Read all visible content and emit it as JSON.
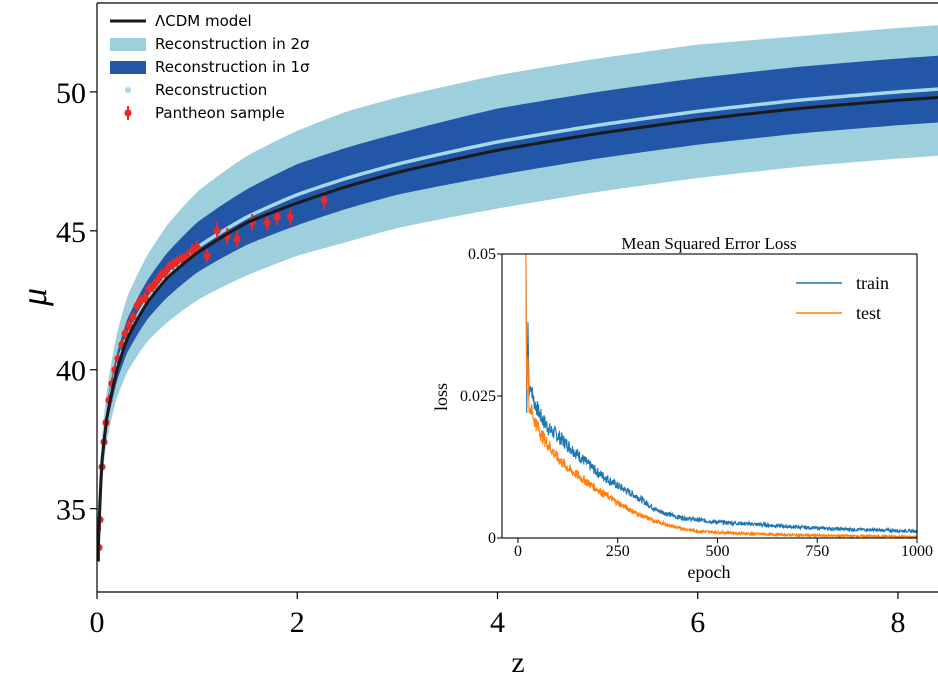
{
  "chart_data": [
    {
      "type": "line",
      "xlabel": "z",
      "ylabel": "μ",
      "xlim": [
        0,
        8.4
      ],
      "ylim": [
        32,
        53.2
      ],
      "x_ticks": [
        "0",
        "2",
        "4",
        "6",
        "8"
      ],
      "y_ticks": [
        "35",
        "40",
        "45",
        "50"
      ],
      "x_tick_values": [
        0,
        2,
        4,
        6,
        8
      ],
      "y_tick_values": [
        35,
        40,
        45,
        50
      ],
      "grid": false,
      "legend_position": "top-left",
      "colors": {
        "lcdm": "#1a1a1a",
        "band_2sigma": "#9ecfdc",
        "band_1sigma": "#2257a7",
        "reconstruction": "#a7d8e8",
        "pantheon": "#e82a2a"
      },
      "legend": [
        {
          "key": "lcdm",
          "label": "ΛCDM model"
        },
        {
          "key": "band_2sigma",
          "label": "Reconstruction in 2σ"
        },
        {
          "key": "band_1sigma",
          "label": "Reconstruction in 1σ"
        },
        {
          "key": "reconstruction",
          "label": "Reconstruction"
        },
        {
          "key": "pantheon",
          "label": "Pantheon sample"
        }
      ],
      "series": [
        {
          "name": "ΛCDM model",
          "x": [
            0.01,
            0.05,
            0.1,
            0.2,
            0.3,
            0.5,
            0.7,
            1.0,
            1.5,
            2.0,
            2.5,
            3.0,
            4.0,
            5.0,
            6.0,
            7.0,
            8.0,
            8.4
          ],
          "y": [
            33.1,
            36.7,
            38.3,
            40.0,
            41.1,
            42.4,
            43.3,
            44.2,
            45.3,
            46.0,
            46.6,
            47.1,
            47.9,
            48.5,
            49.0,
            49.4,
            49.7,
            49.8
          ]
        },
        {
          "name": "Reconstruction",
          "x": [
            0.01,
            0.05,
            0.1,
            0.2,
            0.3,
            0.5,
            0.7,
            1.0,
            1.5,
            2.0,
            2.5,
            3.0,
            4.0,
            5.0,
            6.0,
            7.0,
            8.0,
            8.4
          ],
          "y": [
            33.3,
            36.8,
            38.4,
            40.1,
            41.2,
            42.5,
            43.4,
            44.4,
            45.5,
            46.3,
            46.9,
            47.4,
            48.2,
            48.8,
            49.3,
            49.7,
            50.0,
            50.1
          ],
          "band_1sigma": {
            "lower": [
              33.0,
              36.4,
              38.0,
              39.6,
              40.6,
              41.8,
              42.6,
              43.5,
              44.5,
              45.2,
              45.8,
              46.3,
              47.0,
              47.6,
              48.1,
              48.5,
              48.8,
              48.9
            ],
            "upper": [
              33.6,
              37.2,
              38.8,
              40.6,
              41.8,
              43.2,
              44.2,
              45.3,
              46.5,
              47.4,
              48.0,
              48.5,
              49.4,
              50.0,
              50.5,
              50.9,
              51.2,
              51.3
            ]
          },
          "band_2sigma": {
            "lower": [
              32.8,
              36.0,
              37.5,
              39.0,
              39.9,
              41.0,
              41.7,
              42.5,
              43.4,
              44.1,
              44.6,
              45.1,
              45.8,
              46.4,
              46.9,
              47.3,
              47.6,
              47.7
            ],
            "upper": [
              33.9,
              37.6,
              39.3,
              41.3,
              42.6,
              44.1,
              45.2,
              46.4,
              47.7,
              48.6,
              49.3,
              49.8,
              50.6,
              51.2,
              51.7,
              52.0,
              52.3,
              52.4
            ]
          }
        },
        {
          "name": "Pantheon sample",
          "type": "scatter",
          "x": [
            0.02,
            0.03,
            0.05,
            0.07,
            0.09,
            0.12,
            0.15,
            0.18,
            0.21,
            0.25,
            0.28,
            0.32,
            0.36,
            0.4,
            0.44,
            0.48,
            0.52,
            0.56,
            0.6,
            0.64,
            0.68,
            0.72,
            0.76,
            0.8,
            0.85,
            0.9,
            0.95,
            1.0,
            1.1,
            1.2,
            1.3,
            1.4,
            1.55,
            1.7,
            1.8,
            1.93,
            2.27
          ],
          "y": [
            33.6,
            34.6,
            36.5,
            37.4,
            38.1,
            38.9,
            39.5,
            40.0,
            40.4,
            40.9,
            41.3,
            41.6,
            41.9,
            42.3,
            42.5,
            42.6,
            42.9,
            43.0,
            43.2,
            43.4,
            43.5,
            43.7,
            43.8,
            43.9,
            44.0,
            44.1,
            44.3,
            44.4,
            44.1,
            45.0,
            44.8,
            44.7,
            45.3,
            45.3,
            45.5,
            45.5,
            46.1
          ],
          "err": [
            0.5,
            0.4,
            0.3,
            0.25,
            0.2,
            0.2,
            0.2,
            0.2,
            0.2,
            0.2,
            0.2,
            0.2,
            0.2,
            0.2,
            0.2,
            0.2,
            0.2,
            0.2,
            0.2,
            0.2,
            0.2,
            0.2,
            0.2,
            0.2,
            0.2,
            0.2,
            0.25,
            0.25,
            0.25,
            0.35,
            0.3,
            0.3,
            0.3,
            0.3,
            0.3,
            0.3,
            0.35
          ]
        }
      ]
    },
    {
      "type": "line",
      "title": "Mean Squared Error Loss",
      "xlabel": "epoch",
      "ylabel": "loss",
      "xlim": [
        -40,
        1000
      ],
      "ylim": [
        0,
        0.05
      ],
      "x_ticks": [
        "0",
        "250",
        "500",
        "750",
        "1000"
      ],
      "y_ticks": [
        "0",
        "0.025",
        "0.05"
      ],
      "x_tick_values": [
        0,
        250,
        500,
        750,
        1000
      ],
      "y_tick_values": [
        0,
        0.025,
        0.05
      ],
      "grid": false,
      "legend_position": "top-right",
      "series": [
        {
          "name": "train",
          "color": "#1f77b4",
          "x": [
            20,
            22,
            25,
            28,
            32,
            40,
            60,
            80,
            100,
            130,
            160,
            200,
            250,
            300,
            350,
            400,
            450,
            500,
            600,
            700,
            800,
            900,
            1000
          ],
          "y": [
            0.05,
            0.022,
            0.038,
            0.025,
            0.027,
            0.024,
            0.021,
            0.019,
            0.018,
            0.016,
            0.014,
            0.0115,
            0.0092,
            0.0072,
            0.0048,
            0.0037,
            0.0032,
            0.0028,
            0.0024,
            0.0019,
            0.0016,
            0.0014,
            0.0012
          ]
        },
        {
          "name": "test",
          "color": "#ff7f0e",
          "x": [
            20,
            22,
            25,
            28,
            32,
            40,
            60,
            80,
            100,
            130,
            160,
            200,
            250,
            300,
            350,
            400,
            450,
            500,
            600,
            700,
            800,
            900,
            1000
          ],
          "y": [
            0.05,
            0.026,
            0.032,
            0.022,
            0.023,
            0.021,
            0.018,
            0.016,
            0.014,
            0.012,
            0.0105,
            0.0085,
            0.0062,
            0.0042,
            0.0028,
            0.0018,
            0.0012,
            0.001,
            0.0007,
            0.0005,
            0.0004,
            0.0003,
            0.0002
          ]
        }
      ]
    }
  ]
}
